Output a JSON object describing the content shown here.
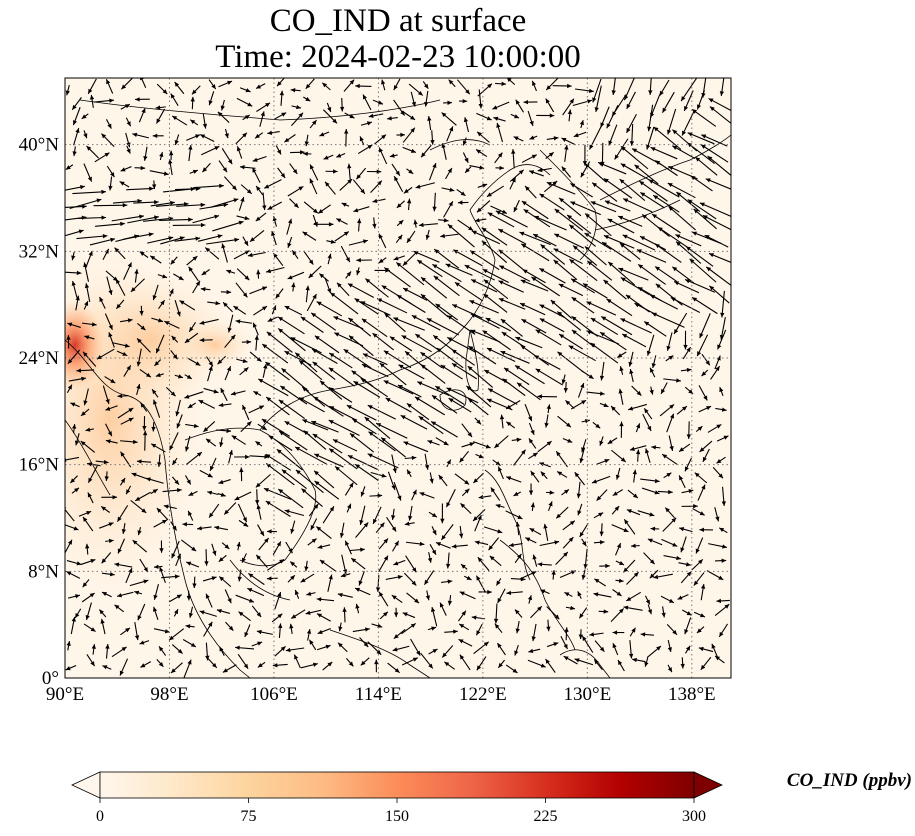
{
  "title": "CO_IND at surface",
  "subtitle": "Time: 2024-02-23 10:00:00",
  "map": {
    "variable": "CO_IND",
    "level": "surface",
    "lon_range": [
      90,
      141
    ],
    "lat_range": [
      0,
      45
    ],
    "lon_ticks": [
      {
        "value": 90,
        "label": "90°E"
      },
      {
        "value": 98,
        "label": "98°E"
      },
      {
        "value": 106,
        "label": "106°E"
      },
      {
        "value": 114,
        "label": "114°E"
      },
      {
        "value": 122,
        "label": "122°E"
      },
      {
        "value": 130,
        "label": "130°E"
      },
      {
        "value": 138,
        "label": "138°E"
      }
    ],
    "lat_ticks": [
      {
        "value": 0,
        "label": "0°"
      },
      {
        "value": 8,
        "label": "8°N"
      },
      {
        "value": 16,
        "label": "16°N"
      },
      {
        "value": 24,
        "label": "24°N"
      },
      {
        "value": 32,
        "label": "32°N"
      },
      {
        "value": 40,
        "label": "40°N"
      }
    ],
    "gridlines": true,
    "overlay": "wind vectors"
  },
  "colorbar": {
    "label": "CO_IND (ppbv)",
    "min": 0,
    "max": 300,
    "ticks": [
      {
        "value": 0,
        "label": "0"
      },
      {
        "value": 75,
        "label": "75"
      },
      {
        "value": 150,
        "label": "150"
      },
      {
        "value": 225,
        "label": "225"
      },
      {
        "value": 300,
        "label": "300"
      }
    ],
    "extend": "both",
    "colormap": [
      "#fff7ec",
      "#fee8c8",
      "#fdd49e",
      "#fdbb84",
      "#fc8d59",
      "#ef6548",
      "#d7301f",
      "#b30000",
      "#7f0000"
    ]
  }
}
